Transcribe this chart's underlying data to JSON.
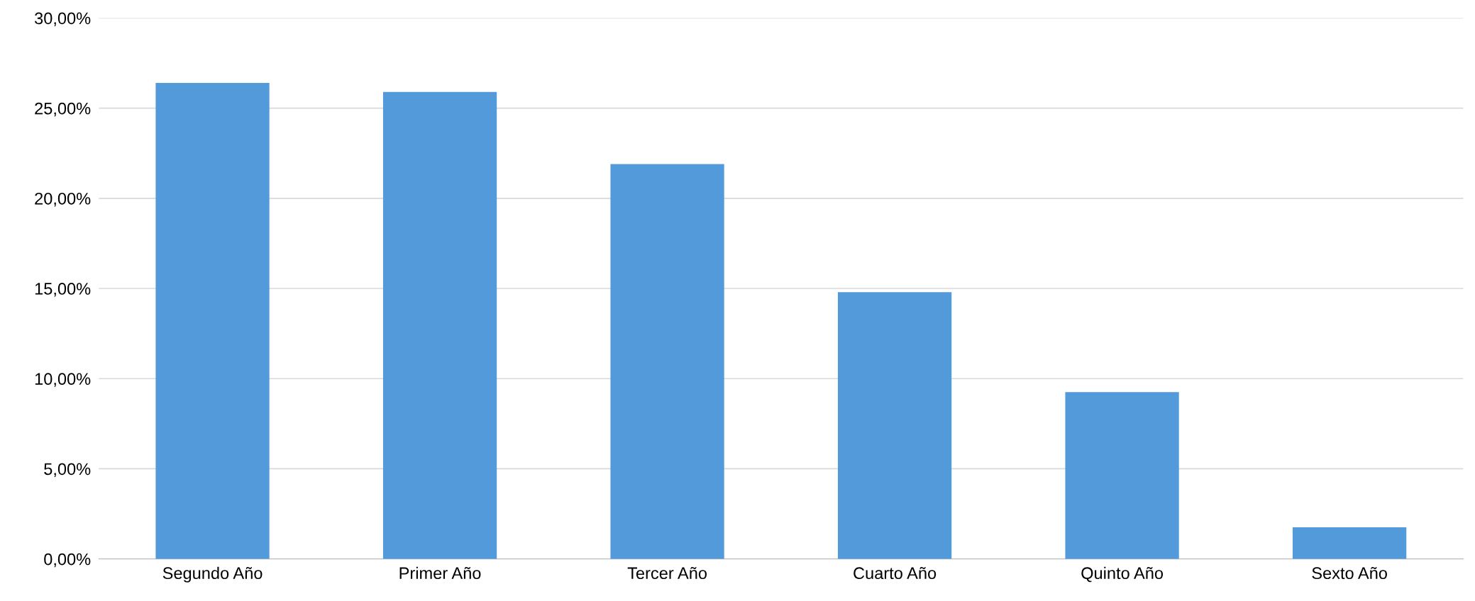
{
  "chart_data": {
    "type": "bar",
    "categories": [
      "Segundo Año",
      "Primer Año",
      "Tercer Año",
      "Cuarto Año",
      "Quinto Año",
      "Sexto Año"
    ],
    "values": [
      26.4,
      25.9,
      21.9,
      14.8,
      9.25,
      1.75
    ],
    "color": "#529ad9",
    "ylim": [
      0,
      30
    ],
    "yticks": [
      {
        "value": 0,
        "label": "0,00%"
      },
      {
        "value": 5,
        "label": "5,00%"
      },
      {
        "value": 10,
        "label": "10,00%"
      },
      {
        "value": 15,
        "label": "15,00%"
      },
      {
        "value": 20,
        "label": "20,00%"
      },
      {
        "value": 25,
        "label": "25,00%"
      },
      {
        "value": 30,
        "label": "30,00%"
      }
    ],
    "grid": "y",
    "legend": false
  }
}
